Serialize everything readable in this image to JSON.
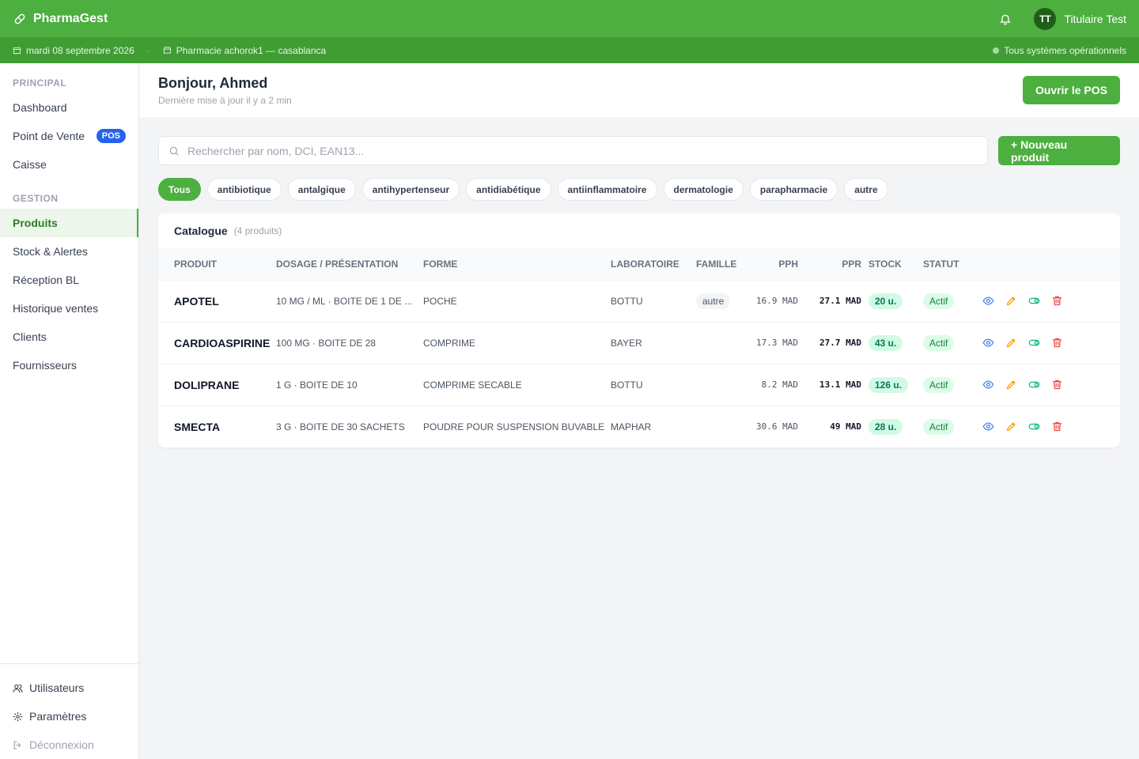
{
  "header": {
    "brand": "PharmaGest",
    "user_initials": "TT",
    "user_name": "Titulaire Test"
  },
  "status_bar": {
    "date": "mardi 08 septembre 2026",
    "separator": "·",
    "pharmacy": "Pharmacie achorok1 — casablanca",
    "status": "Tous systèmes opérationnels"
  },
  "sidebar": {
    "sections": [
      {
        "title": "PRINCIPAL",
        "items": [
          {
            "label": "Dashboard"
          },
          {
            "label": "Point de Vente",
            "badge": "POS"
          },
          {
            "label": "Caisse"
          }
        ]
      },
      {
        "title": "GESTION",
        "items": [
          {
            "label": "Produits",
            "active": true
          },
          {
            "label": "Stock & Alertes"
          },
          {
            "label": "Réception BL"
          },
          {
            "label": "Historique ventes"
          },
          {
            "label": "Clients"
          },
          {
            "label": "Fournisseurs"
          }
        ]
      }
    ],
    "footer": [
      "Utilisateurs",
      "Paramètres",
      "Déconnexion"
    ]
  },
  "page": {
    "greeting": "Bonjour, Ahmed",
    "updated": "Dernière mise à jour il y a 2 min",
    "pos_button": "Ouvrir le POS",
    "search_placeholder": "Rechercher par nom, DCI, EAN13...",
    "new_button": "+ Nouveau produit",
    "filters": [
      "Tous",
      "antibiotique",
      "antalgique",
      "antihypertenseur",
      "antidiabétique",
      "antiinflammatoire",
      "dermatologie",
      "parapharmacie",
      "autre"
    ],
    "active_filter": 0
  },
  "table": {
    "title": "Catalogue",
    "count": "(4 produits)",
    "columns": [
      "PRODUIT",
      "DOSAGE / PRÉSENTATION",
      "FORME",
      "LABORATOIRE",
      "FAMILLE",
      "PPH",
      "PPR",
      "STOCK",
      "STATUT"
    ],
    "rows": [
      {
        "name": "APOTEL",
        "dosage": "10 MG / ML · BOITE DE 1 DE ...",
        "forme": "POCHE",
        "labo": "BOTTU",
        "famille": "autre",
        "pph": "16.9 MAD",
        "ppr": "27.1 MAD",
        "stock": "20 u.",
        "statut": "Actif"
      },
      {
        "name": "CARDIOASPIRINE",
        "dosage": "100 MG · BOITE DE 28",
        "forme": "COMPRIME",
        "labo": "BAYER",
        "famille": null,
        "pph": "17.3 MAD",
        "ppr": "27.7 MAD",
        "stock": "43 u.",
        "statut": "Actif"
      },
      {
        "name": "DOLIPRANE",
        "dosage": "1 G · BOITE DE 10",
        "forme": "COMPRIME SECABLE",
        "labo": "BOTTU",
        "famille": null,
        "pph": "8.2 MAD",
        "ppr": "13.1 MAD",
        "stock": "126 u.",
        "statut": "Actif"
      },
      {
        "name": "SMECTA",
        "dosage": "3 G · BOITE DE 30 SACHETS",
        "forme": "POUDRE POUR SUSPENSION BUVABLE",
        "labo": "MAPHAR",
        "famille": null,
        "pph": "30.6 MAD",
        "ppr": "49 MAD",
        "stock": "28 u.",
        "statut": "Actif"
      }
    ]
  }
}
